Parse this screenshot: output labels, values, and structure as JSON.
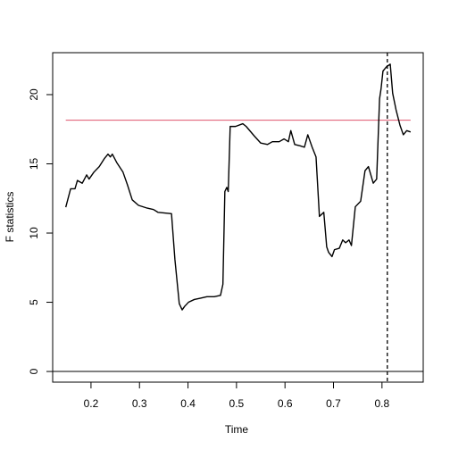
{
  "chart_data": {
    "type": "line",
    "x_label": "Time",
    "y_label": "F statistics",
    "x": [
      0.148,
      0.158,
      0.167,
      0.172,
      0.182,
      0.191,
      0.196,
      0.206,
      0.217,
      0.228,
      0.235,
      0.24,
      0.244,
      0.253,
      0.266,
      0.275,
      0.285,
      0.298,
      0.316,
      0.329,
      0.338,
      0.366,
      0.373,
      0.382,
      0.388,
      0.393,
      0.401,
      0.413,
      0.426,
      0.439,
      0.454,
      0.467,
      0.472,
      0.476,
      0.48,
      0.483,
      0.487,
      0.498,
      0.513,
      0.52,
      0.537,
      0.55,
      0.564,
      0.574,
      0.588,
      0.598,
      0.607,
      0.612,
      0.62,
      0.631,
      0.64,
      0.647,
      0.656,
      0.664,
      0.671,
      0.677,
      0.68,
      0.686,
      0.69,
      0.697,
      0.702,
      0.712,
      0.719,
      0.725,
      0.732,
      0.737,
      0.745,
      0.756,
      0.765,
      0.772,
      0.782,
      0.789,
      0.795,
      0.798,
      0.802,
      0.809,
      0.817,
      0.822,
      0.829,
      0.837,
      0.844,
      0.851,
      0.859
    ],
    "series": [
      {
        "color": "#000000",
        "values": [
          11.87,
          13.2,
          13.2,
          13.8,
          13.6,
          14.2,
          13.9,
          14.4,
          14.8,
          15.4,
          15.7,
          15.5,
          15.7,
          15.1,
          14.4,
          13.5,
          12.4,
          12.0,
          11.8,
          11.7,
          11.5,
          11.4,
          8.1,
          4.9,
          4.45,
          4.7,
          5.0,
          5.2,
          5.3,
          5.4,
          5.4,
          5.5,
          6.3,
          13.0,
          13.3,
          13.0,
          17.7,
          17.7,
          17.9,
          17.7,
          17.0,
          16.5,
          16.4,
          16.6,
          16.6,
          16.8,
          16.6,
          17.4,
          16.4,
          16.3,
          16.2,
          17.1,
          16.2,
          15.5,
          11.2,
          11.4,
          11.5,
          9.0,
          8.6,
          8.3,
          8.8,
          8.9,
          9.5,
          9.3,
          9.5,
          9.1,
          11.9,
          12.3,
          14.5,
          14.8,
          13.6,
          13.9,
          19.7,
          20.4,
          21.7,
          22.0,
          22.2,
          20.1,
          18.9,
          17.8,
          17.1,
          17.4,
          17.3
        ]
      }
    ],
    "boundary": {
      "value": 18.15,
      "color": "#df536b"
    },
    "zero_line": {
      "value": 0,
      "color": "#000000"
    },
    "breakpoint": {
      "value": 0.811,
      "color": "#000000",
      "dashed": true
    },
    "xlim": [
      0.121,
      0.885
    ],
    "ylim": [
      -0.77,
      23.03
    ],
    "xticks": [
      0.2,
      0.3,
      0.4,
      0.5,
      0.6,
      0.7,
      0.8
    ],
    "yticks": [
      0,
      5,
      10,
      15,
      20
    ]
  }
}
